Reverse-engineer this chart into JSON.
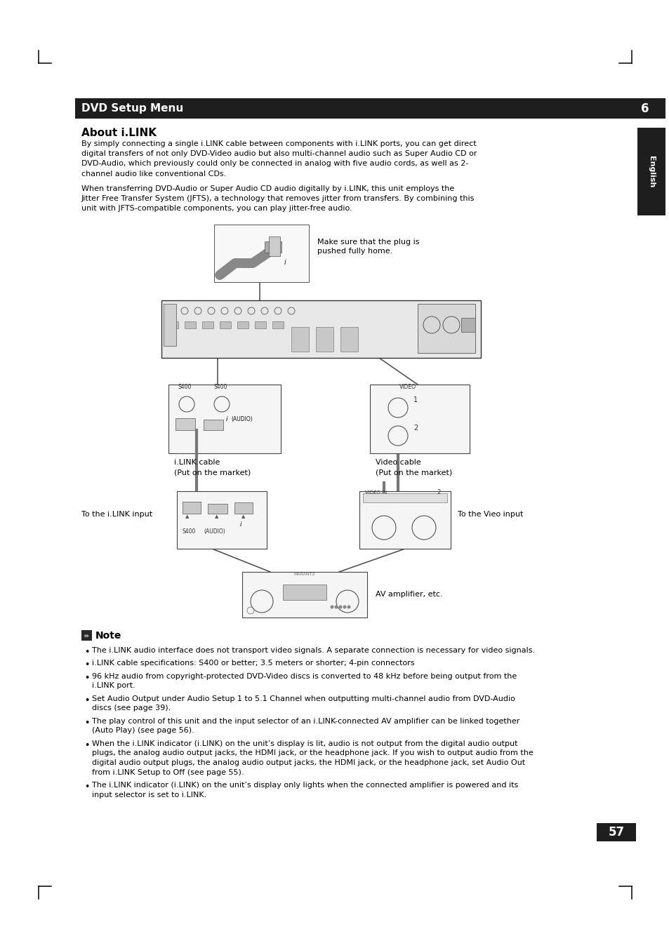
{
  "title": "DVD Setup Menu",
  "chapter_num": "6",
  "section_title": "About i.LINK",
  "para1_lines": [
    "By simply connecting a single i.LINK cable between components with i.LINK ports, you can get direct",
    "digital transfers of not only DVD-Video audio but also multi-channel audio such as Super Audio CD or",
    "DVD-Audio, which previously could only be connected in analog with five audio cords, as well as 2-",
    "channel audio like conventional CDs."
  ],
  "para2_lines": [
    "When transferring DVD-Audio or Super Audio CD audio digitally by i.LINK, this unit employs the",
    "Jitter Free Transfer System (JFTS), a technology that removes jitter from transfers. By combining this",
    "unit with JFTS-compatible components, you can play jitter-free audio."
  ],
  "caption_plug_1": "Make sure that the plug is",
  "caption_plug_2": "pushed fully home.",
  "caption_ilink_1": "i.LINK cable",
  "caption_ilink_2": "(Put on the market)",
  "caption_video_1": "Video cable",
  "caption_video_2": "(Put on the market)",
  "caption_ilink_input": "To the i.LINK input",
  "caption_video_input": "To the Vieo input",
  "caption_av": "AV amplifier, etc.",
  "note_title": "Note",
  "notes": [
    [
      "The i.LINK audio interface does not transport video signals. A separate connection is necessary for video signals."
    ],
    [
      "i.LINK cable specifications: S400 or better; 3.5 meters or shorter; 4-pin connectors"
    ],
    [
      "96 kHz audio from copyright-protected DVD-Video discs is converted to 48 kHz before being output from the",
      "i.LINK port."
    ],
    [
      "Set Audio Output under Audio Setup 1 to 5.1 Channel when outputting multi-channel audio from DVD-Audio",
      "discs (see page 39)."
    ],
    [
      "The play control of this unit and the input selector of an i.LINK-connected AV amplifier can be linked together",
      "(Auto Play) (see page 56)."
    ],
    [
      "When the i.LINK indicator (i.LINK) on the unit’s display is lit, audio is not output from the digital audio output",
      "plugs, the analog audio output jacks, the HDMI jack, or the headphone jack. If you wish to output audio from the",
      "digital audio output plugs, the analog audio output jacks, the HDMI jack, or the headphone jack, set Audio Out",
      "from i.LINK Setup to Off (see page 55)."
    ],
    [
      "The i.LINK indicator (i.LINK) on the unit’s display only lights when the connected amplifier is powered and its",
      "input selector is set to i.LINK."
    ]
  ],
  "page_num": "57",
  "sidebar_text": "English",
  "bg_color": "#ffffff",
  "header_bg": "#1e1e1e",
  "header_fg": "#ffffff",
  "sidebar_bg": "#1e1e1e",
  "page_num_bg": "#1e1e1e",
  "page_num_fg": "#ffffff"
}
